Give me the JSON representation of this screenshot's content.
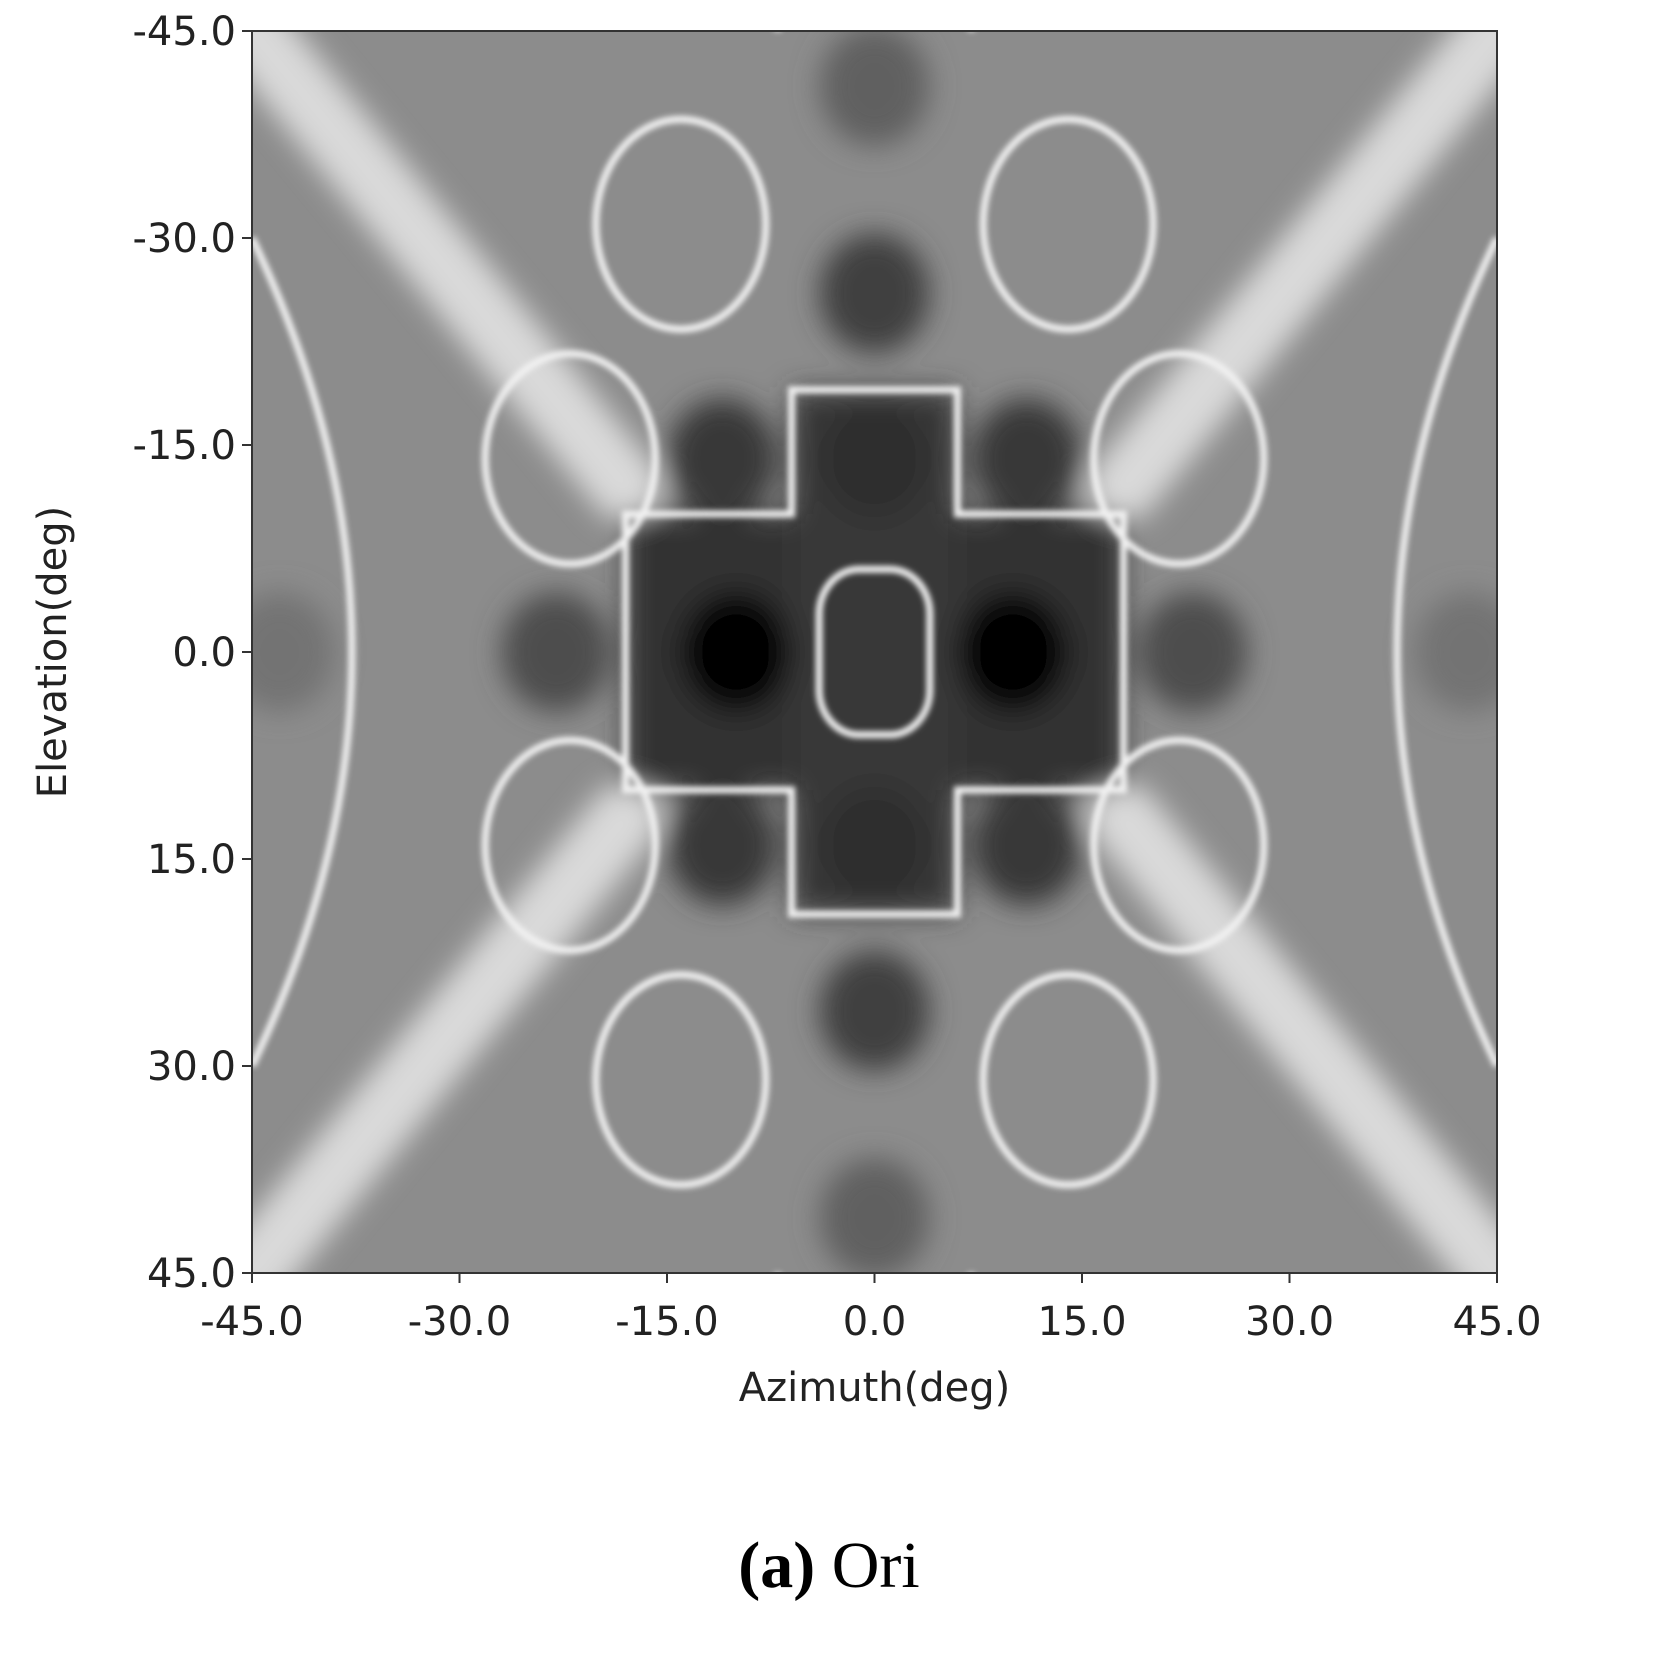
{
  "chart_data": {
    "type": "heatmap",
    "title": "",
    "xlabel": "Azimuth(deg)",
    "ylabel": "Elevation(deg)",
    "xlim": [
      -45.0,
      45.0
    ],
    "ylim": [
      -45.0,
      45.0
    ],
    "y_axis_inverted": true,
    "xticks": [
      "-45.0",
      "-30.0",
      "-15.0",
      "0.0",
      "15.0",
      "30.0",
      "45.0"
    ],
    "yticks": [
      "-45.0",
      "-30.0",
      "-15.0",
      "0.0",
      "15.0",
      "30.0",
      "45.0"
    ],
    "colormap": "gray",
    "grid": false,
    "legend": "none",
    "pattern": {
      "description_values": "symmetric sidelobe pattern; darkest (lowest) near (±10, 0); bright null contours forming rounded cross shapes",
      "central_ring": {
        "az": [
          -4,
          4
        ],
        "el": [
          -6,
          6
        ]
      },
      "central_cross_arms": {
        "az": [
          -6,
          6
        ],
        "el": [
          -19,
          19
        ]
      },
      "inner_box": {
        "az": [
          -18,
          18
        ],
        "el": [
          -10,
          10
        ]
      },
      "lobes": [
        {
          "az": -10,
          "el": 0,
          "level": 0.02
        },
        {
          "az": 10,
          "el": 0,
          "level": 0.02
        },
        {
          "az": 0,
          "el": -14,
          "level": 0.18
        },
        {
          "az": 0,
          "el": 14,
          "level": 0.18
        },
        {
          "az": -11,
          "el": -14,
          "level": 0.22
        },
        {
          "az": 11,
          "el": -14,
          "level": 0.22
        },
        {
          "az": -11,
          "el": 14,
          "level": 0.22
        },
        {
          "az": 11,
          "el": 14,
          "level": 0.22
        },
        {
          "az": -23,
          "el": 0,
          "level": 0.3
        },
        {
          "az": 23,
          "el": 0,
          "level": 0.3
        },
        {
          "az": 0,
          "el": -26,
          "level": 0.25
        },
        {
          "az": 0,
          "el": 26,
          "level": 0.25
        },
        {
          "az": 0,
          "el": -41,
          "level": 0.38
        },
        {
          "az": 0,
          "el": 41,
          "level": 0.38
        },
        {
          "az": -43,
          "el": 0,
          "level": 0.45
        },
        {
          "az": 43,
          "el": 0,
          "level": 0.45
        }
      ]
    }
  },
  "caption": {
    "letter": "(a)",
    "text": " Ori"
  },
  "colors": {
    "background": "#ffffff",
    "axis": "#333333",
    "text": "#222222"
  }
}
